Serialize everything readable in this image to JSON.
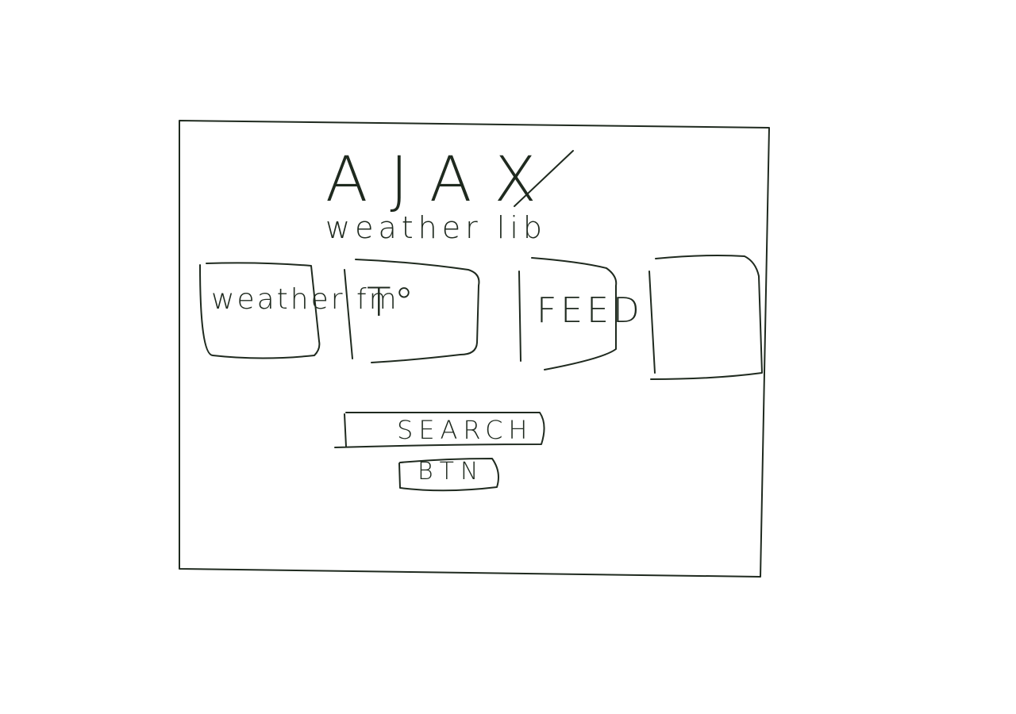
{
  "sketch": {
    "ink_color": "#1f2a1f",
    "title": "AJAX",
    "subtitle": "weather lib",
    "cards": [
      {
        "label": "weather fm"
      },
      {
        "label": "T°"
      },
      {
        "label": "FEED"
      },
      {
        "label": ""
      }
    ],
    "search": {
      "label": "SEARCH"
    },
    "button": {
      "label": "BTN"
    }
  }
}
